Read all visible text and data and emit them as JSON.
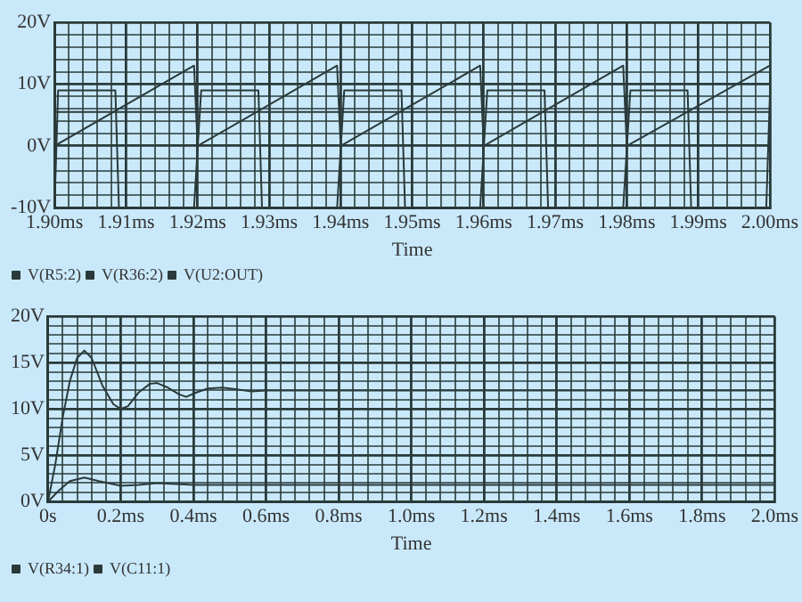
{
  "chart_data": [
    {
      "type": "line",
      "xlabel": "Time",
      "legend": "bottom left",
      "grid": true,
      "xlim": [
        1.9,
        2.0
      ],
      "xticks": [
        {
          "value": 1.9,
          "label": "1.90ms"
        },
        {
          "value": 1.902,
          "label": null
        },
        {
          "value": 1.904,
          "label": null
        },
        {
          "value": 1.906,
          "label": null
        },
        {
          "value": 1.908,
          "label": null
        },
        {
          "value": 1.91,
          "label": "1.91ms"
        },
        {
          "value": 1.912,
          "label": null
        },
        {
          "value": 1.914,
          "label": null
        },
        {
          "value": 1.916,
          "label": null
        },
        {
          "value": 1.918,
          "label": null
        },
        {
          "value": 1.92,
          "label": "1.92ms"
        },
        {
          "value": 1.922,
          "label": null
        },
        {
          "value": 1.924,
          "label": null
        },
        {
          "value": 1.926,
          "label": null
        },
        {
          "value": 1.928,
          "label": null
        },
        {
          "value": 1.93,
          "label": "1.93ms"
        },
        {
          "value": 1.932,
          "label": null
        },
        {
          "value": 1.934,
          "label": null
        },
        {
          "value": 1.936,
          "label": null
        },
        {
          "value": 1.938,
          "label": null
        },
        {
          "value": 1.94,
          "label": "1.94ms"
        },
        {
          "value": 1.942,
          "label": null
        },
        {
          "value": 1.944,
          "label": null
        },
        {
          "value": 1.946,
          "label": null
        },
        {
          "value": 1.948,
          "label": null
        },
        {
          "value": 1.95,
          "label": "1.95ms"
        },
        {
          "value": 1.952,
          "label": null
        },
        {
          "value": 1.954,
          "label": null
        },
        {
          "value": 1.956,
          "label": null
        },
        {
          "value": 1.958,
          "label": null
        },
        {
          "value": 1.96,
          "label": "1.96ms"
        },
        {
          "value": 1.962,
          "label": null
        },
        {
          "value": 1.964,
          "label": null
        },
        {
          "value": 1.966,
          "label": null
        },
        {
          "value": 1.968,
          "label": null
        },
        {
          "value": 1.97,
          "label": "1.97ms"
        },
        {
          "value": 1.972,
          "label": null
        },
        {
          "value": 1.974,
          "label": null
        },
        {
          "value": 1.976,
          "label": null
        },
        {
          "value": 1.978,
          "label": null
        },
        {
          "value": 1.98,
          "label": "1.98ms"
        },
        {
          "value": 1.982,
          "label": null
        },
        {
          "value": 1.984,
          "label": null
        },
        {
          "value": 1.986,
          "label": null
        },
        {
          "value": 1.988,
          "label": null
        },
        {
          "value": 1.99,
          "label": "1.99ms"
        },
        {
          "value": 1.992,
          "label": null
        },
        {
          "value": 1.994,
          "label": null
        },
        {
          "value": 1.996,
          "label": null
        },
        {
          "value": 1.998,
          "label": null
        },
        {
          "value": 2.0,
          "label": "2.00ms"
        }
      ],
      "ylim": [
        -10,
        20
      ],
      "yticks": [
        {
          "value": -10,
          "label": "-10V"
        },
        {
          "value": -8,
          "label": null
        },
        {
          "value": -6,
          "label": null
        },
        {
          "value": -4,
          "label": null
        },
        {
          "value": -2,
          "label": null
        },
        {
          "value": 0,
          "label": "0V"
        },
        {
          "value": 2,
          "label": null
        },
        {
          "value": 4,
          "label": null
        },
        {
          "value": 6,
          "label": null
        },
        {
          "value": 8,
          "label": null
        },
        {
          "value": 10,
          "label": "10V"
        },
        {
          "value": 12,
          "label": null
        },
        {
          "value": 14,
          "label": null
        },
        {
          "value": 16,
          "label": null
        },
        {
          "value": 18,
          "label": null
        },
        {
          "value": 20,
          "label": "20V"
        }
      ],
      "series": [
        {
          "name": "V(R5:2)",
          "color": "#2a3a3a",
          "x": [
            1.9,
            1.9195,
            1.92,
            1.9395,
            1.94,
            1.9595,
            1.96,
            1.9795,
            1.98,
            2.0
          ],
          "values": [
            0,
            13,
            0,
            13,
            0,
            13,
            0,
            13,
            0,
            13
          ]
        },
        {
          "name": "V(R36:2)",
          "color": "#2a3a3a",
          "x": [
            1.9,
            1.95,
            2.0
          ],
          "values": [
            5.5,
            5.5,
            5.5
          ]
        },
        {
          "name": "V(U2:OUT)",
          "color": "#2a3a3a",
          "x": [
            1.9,
            1.9005,
            1.9085,
            1.909,
            1.9195,
            1.9205,
            1.9285,
            1.929,
            1.9395,
            1.9405,
            1.9485,
            1.949,
            1.9595,
            1.9605,
            1.9685,
            1.969,
            1.9795,
            1.9805,
            1.9885,
            1.989,
            1.9995,
            2.0
          ],
          "values": [
            -10,
            9,
            9,
            -10,
            -10,
            9,
            9,
            -10,
            -10,
            9,
            9,
            -10,
            -10,
            9,
            9,
            -10,
            -10,
            9,
            9,
            -10,
            -10,
            8
          ]
        }
      ]
    },
    {
      "type": "line",
      "xlabel": "Time",
      "legend": "bottom left",
      "grid": true,
      "xlim": [
        0,
        2.0
      ],
      "xticks": [
        {
          "value": 0,
          "label": "0s"
        },
        {
          "value": 0.04,
          "label": null
        },
        {
          "value": 0.08,
          "label": null
        },
        {
          "value": 0.12,
          "label": null
        },
        {
          "value": 0.16,
          "label": null
        },
        {
          "value": 0.2,
          "label": "0.2ms"
        },
        {
          "value": 0.24,
          "label": null
        },
        {
          "value": 0.28,
          "label": null
        },
        {
          "value": 0.32,
          "label": null
        },
        {
          "value": 0.36,
          "label": null
        },
        {
          "value": 0.4,
          "label": "0.4ms"
        },
        {
          "value": 0.44,
          "label": null
        },
        {
          "value": 0.48,
          "label": null
        },
        {
          "value": 0.52,
          "label": null
        },
        {
          "value": 0.56,
          "label": null
        },
        {
          "value": 0.6,
          "label": "0.6ms"
        },
        {
          "value": 0.64,
          "label": null
        },
        {
          "value": 0.68,
          "label": null
        },
        {
          "value": 0.72,
          "label": null
        },
        {
          "value": 0.76,
          "label": null
        },
        {
          "value": 0.8,
          "label": "0.8ms"
        },
        {
          "value": 0.84,
          "label": null
        },
        {
          "value": 0.88,
          "label": null
        },
        {
          "value": 0.92,
          "label": null
        },
        {
          "value": 0.96,
          "label": null
        },
        {
          "value": 1.0,
          "label": "1.0ms"
        },
        {
          "value": 1.04,
          "label": null
        },
        {
          "value": 1.08,
          "label": null
        },
        {
          "value": 1.12,
          "label": null
        },
        {
          "value": 1.16,
          "label": null
        },
        {
          "value": 1.2,
          "label": "1.2ms"
        },
        {
          "value": 1.24,
          "label": null
        },
        {
          "value": 1.28,
          "label": null
        },
        {
          "value": 1.32,
          "label": null
        },
        {
          "value": 1.36,
          "label": null
        },
        {
          "value": 1.4,
          "label": "1.4ms"
        },
        {
          "value": 1.44,
          "label": null
        },
        {
          "value": 1.48,
          "label": null
        },
        {
          "value": 1.52,
          "label": null
        },
        {
          "value": 1.56,
          "label": null
        },
        {
          "value": 1.6,
          "label": "1.6ms"
        },
        {
          "value": 1.64,
          "label": null
        },
        {
          "value": 1.68,
          "label": null
        },
        {
          "value": 1.72,
          "label": null
        },
        {
          "value": 1.76,
          "label": null
        },
        {
          "value": 1.8,
          "label": "1.8ms"
        },
        {
          "value": 1.84,
          "label": null
        },
        {
          "value": 1.88,
          "label": null
        },
        {
          "value": 1.92,
          "label": null
        },
        {
          "value": 1.96,
          "label": null
        },
        {
          "value": 2.0,
          "label": "2.0ms"
        }
      ],
      "ylim": [
        0,
        20
      ],
      "yticks": [
        {
          "value": 0,
          "label": "0V"
        },
        {
          "value": 1,
          "label": null
        },
        {
          "value": 2,
          "label": null
        },
        {
          "value": 3,
          "label": null
        },
        {
          "value": 4,
          "label": null
        },
        {
          "value": 5,
          "label": "5V"
        },
        {
          "value": 6,
          "label": null
        },
        {
          "value": 7,
          "label": null
        },
        {
          "value": 8,
          "label": null
        },
        {
          "value": 9,
          "label": null
        },
        {
          "value": 10,
          "label": "10V"
        },
        {
          "value": 11,
          "label": null
        },
        {
          "value": 12,
          "label": null
        },
        {
          "value": 13,
          "label": null
        },
        {
          "value": 14,
          "label": null
        },
        {
          "value": 15,
          "label": "15V"
        },
        {
          "value": 16,
          "label": null
        },
        {
          "value": 17,
          "label": null
        },
        {
          "value": 18,
          "label": null
        },
        {
          "value": 19,
          "label": null
        },
        {
          "value": 20,
          "label": "20V"
        }
      ],
      "series": [
        {
          "name": "V(R34:1)",
          "color": "#2a3a3a",
          "x": [
            0,
            0.02,
            0.04,
            0.06,
            0.08,
            0.1,
            0.12,
            0.15,
            0.18,
            0.2,
            0.22,
            0.25,
            0.28,
            0.3,
            0.33,
            0.36,
            0.38,
            0.41,
            0.44,
            0.48,
            0.52,
            0.56,
            0.6,
            0.8,
            1.0,
            1.2,
            1.4,
            1.6,
            1.8,
            2.0
          ],
          "values": [
            0,
            4,
            9,
            13,
            15.5,
            16.3,
            15.5,
            12.5,
            10.5,
            10,
            10.3,
            11.8,
            12.7,
            12.8,
            12.3,
            11.6,
            11.3,
            11.8,
            12.2,
            12.3,
            12.1,
            11.9,
            12,
            12,
            12,
            12,
            12,
            12,
            12,
            12
          ]
        },
        {
          "name": "V(C11:1)",
          "color": "#2a3a3a",
          "x": [
            0,
            0.03,
            0.06,
            0.1,
            0.14,
            0.2,
            0.25,
            0.3,
            0.35,
            0.4,
            0.6,
            1.0,
            1.5,
            2.0
          ],
          "values": [
            0,
            1.2,
            2.2,
            2.6,
            2.2,
            1.7,
            1.8,
            2.0,
            1.9,
            1.8,
            1.8,
            1.8,
            1.8,
            1.8
          ]
        }
      ]
    }
  ]
}
